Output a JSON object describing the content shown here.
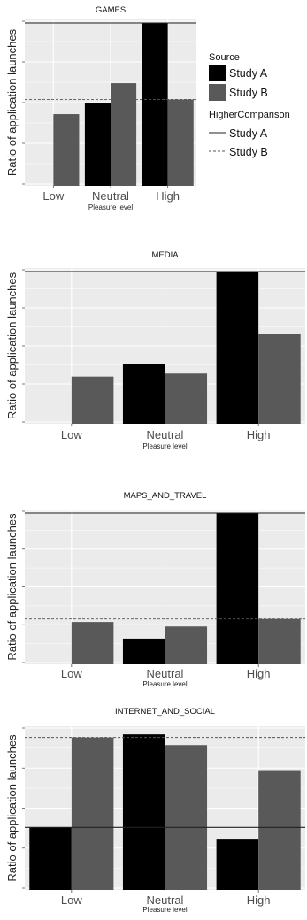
{
  "chart_data": [
    {
      "type": "bar",
      "title": "GAMES",
      "xlabel": "Pleasure level",
      "ylabel": "Ratio of application launches",
      "categories": [
        "Low",
        "Neutral",
        "High"
      ],
      "series": [
        {
          "name": "Study A",
          "color": "#000000",
          "values": [
            null,
            0.51,
            1.0
          ]
        },
        {
          "name": "Study B",
          "color": "#595959",
          "values": [
            0.44,
            0.63,
            0.53
          ]
        }
      ],
      "reference_lines": [
        {
          "name": "Study A",
          "style": "solid",
          "value": 1.0
        },
        {
          "name": "Study B",
          "style": "dashed",
          "value": 0.53
        }
      ],
      "ylim": [
        0,
        1.0
      ],
      "grid": true,
      "y_tick_labels_shown": false,
      "legend": {
        "placement": "right",
        "fill_title": "Source",
        "line_title": "HigherComparison",
        "fill_items": [
          "Study A",
          "Study B"
        ],
        "line_items": [
          "Study A",
          "Study B"
        ]
      }
    },
    {
      "type": "bar",
      "title": "MEDIA",
      "xlabel": "Pleasure level",
      "ylabel": "Ratio of application launches",
      "categories": [
        "Low",
        "Neutral",
        "High"
      ],
      "series": [
        {
          "name": "Study A",
          "color": "#000000",
          "values": [
            null,
            0.39,
            1.0
          ]
        },
        {
          "name": "Study B",
          "color": "#595959",
          "values": [
            0.31,
            0.33,
            0.59
          ]
        }
      ],
      "reference_lines": [
        {
          "name": "Study A",
          "style": "solid",
          "value": 1.0
        },
        {
          "name": "Study B",
          "style": "dashed",
          "value": 0.59
        }
      ],
      "ylim": [
        0,
        1.0
      ],
      "grid": true,
      "y_tick_labels_shown": false
    },
    {
      "type": "bar",
      "title": "MAPS_AND_TRAVEL",
      "xlabel": "Pleasure level",
      "ylabel": "Ratio of application launches",
      "categories": [
        "Low",
        "Neutral",
        "High"
      ],
      "series": [
        {
          "name": "Study A",
          "color": "#000000",
          "values": [
            null,
            0.17,
            1.0
          ]
        },
        {
          "name": "Study B",
          "color": "#595959",
          "values": [
            0.28,
            0.25,
            0.3
          ]
        }
      ],
      "reference_lines": [
        {
          "name": "Study A",
          "style": "solid",
          "value": 1.0
        },
        {
          "name": "Study B",
          "style": "dashed",
          "value": 0.3
        }
      ],
      "ylim": [
        0,
        1.0
      ],
      "grid": true,
      "y_tick_labels_shown": false
    },
    {
      "type": "bar",
      "title": "INTERNET_AND_SOCIAL",
      "xlabel": "Pleasure level",
      "ylabel": "Ratio of application launches",
      "categories": [
        "Low",
        "Neutral",
        "High"
      ],
      "series": [
        {
          "name": "Study A",
          "color": "#000000",
          "values": [
            0.41,
            1.02,
            0.33
          ]
        },
        {
          "name": "Study B",
          "color": "#595959",
          "values": [
            1.0,
            0.95,
            0.78
          ]
        }
      ],
      "reference_lines": [
        {
          "name": "Study A",
          "style": "solid",
          "value": 0.41
        },
        {
          "name": "Study B",
          "style": "dashed",
          "value": 1.0
        }
      ],
      "ylim": [
        0,
        1.05
      ],
      "grid": true,
      "y_tick_labels_shown": false
    }
  ]
}
